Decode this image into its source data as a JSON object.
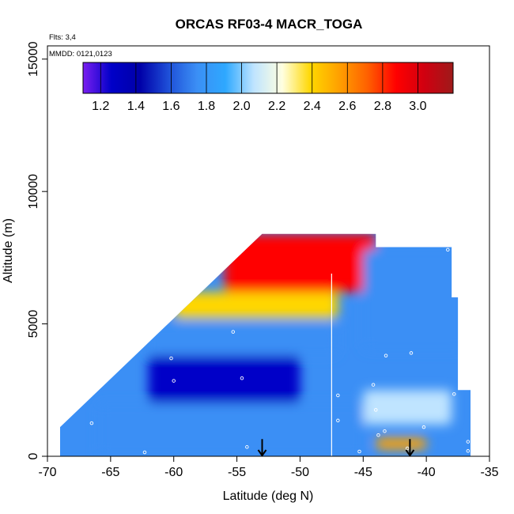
{
  "chart_data": {
    "type": "heatmap",
    "title": "ORCAS RF03-4 MACR_TOGA",
    "subtitle_flights": "Flts: 3,4",
    "subtitle_dates": "MMDD: 0121,0123",
    "xlabel": "Latitude (deg N)",
    "ylabel": "Altitude (m)",
    "xlim": [
      -70,
      -35
    ],
    "ylim": [
      0,
      15500
    ],
    "x_ticks": [
      -70,
      -65,
      -60,
      -55,
      -50,
      -45,
      -40,
      -35
    ],
    "x_tick_labels": [
      "-70",
      "-65",
      "-60",
      "-55",
      "-50",
      "-45",
      "-40",
      "-35"
    ],
    "y_ticks": [
      0,
      5000,
      10000,
      15000
    ],
    "y_tick_labels": [
      "0",
      "5000",
      "10000",
      "15000"
    ],
    "grid": false,
    "colorbar": {
      "placement": "top-left inside plot",
      "range": [
        1.1,
        3.2
      ],
      "ticks": [
        1.2,
        1.4,
        1.6,
        1.8,
        2.0,
        2.2,
        2.4,
        2.6,
        2.8,
        3.0
      ],
      "tick_labels": [
        "1.2",
        "1.4",
        "1.6",
        "1.8",
        "2.0",
        "2.2",
        "2.4",
        "2.6",
        "2.8",
        "3.0"
      ],
      "colors": [
        "#7a1ff0",
        "#0000c8",
        "#0000a8",
        "#1e4fd8",
        "#3b8ff5",
        "#2ea8ff",
        "#bfe4ff",
        "#ffffe0",
        "#ffd700",
        "#ffa000",
        "#ff6000",
        "#ff0000",
        "#d00010",
        "#9e1a1a"
      ]
    },
    "envelope": {
      "lat_min_at_surface": -69,
      "lat_max": -36.5,
      "max_altitude": 8400,
      "left_edge_lat_at_max_alt": -53,
      "flight_turn_lat": -47.5
    },
    "regions": [
      {
        "lat_range": [
          -56,
          -44
        ],
        "alt_range": [
          6200,
          8400
        ],
        "value": 2.9
      },
      {
        "lat_range": [
          -60,
          -47
        ],
        "alt_range": [
          5200,
          6200
        ],
        "value": 2.4
      },
      {
        "lat_range": [
          -62,
          -47
        ],
        "alt_range": [
          3800,
          5000
        ],
        "value": 1.7
      },
      {
        "lat_range": [
          -62,
          -50
        ],
        "alt_range": [
          2000,
          3800
        ],
        "value": 1.2
      },
      {
        "lat_range": [
          -66,
          -45
        ],
        "alt_range": [
          0,
          2000
        ],
        "value": 1.8
      },
      {
        "lat_range": [
          -45,
          -37
        ],
        "alt_range": [
          4000,
          7800
        ],
        "value": 1.7
      },
      {
        "lat_range": [
          -45,
          -38
        ],
        "alt_range": [
          1200,
          2500
        ],
        "value": 2.1
      },
      {
        "lat_range": [
          -44,
          -40
        ],
        "alt_range": [
          250,
          700
        ],
        "value": 2.6
      }
    ],
    "samples": [
      {
        "lat": -38.3,
        "alt": 7800
      },
      {
        "lat": -55.3,
        "alt": 4700
      },
      {
        "lat": -60.2,
        "alt": 3700
      },
      {
        "lat": -43.2,
        "alt": 3800
      },
      {
        "lat": -41.2,
        "alt": 3900
      },
      {
        "lat": -54.6,
        "alt": 2950
      },
      {
        "lat": -60.0,
        "alt": 2850
      },
      {
        "lat": -44.2,
        "alt": 2700
      },
      {
        "lat": -47.0,
        "alt": 2300
      },
      {
        "lat": -37.8,
        "alt": 2350
      },
      {
        "lat": -44.0,
        "alt": 1750
      },
      {
        "lat": -47.0,
        "alt": 1350
      },
      {
        "lat": -40.2,
        "alt": 1100
      },
      {
        "lat": -43.3,
        "alt": 950
      },
      {
        "lat": -43.8,
        "alt": 800
      },
      {
        "lat": -66.5,
        "alt": 1250
      },
      {
        "lat": -54.2,
        "alt": 350
      },
      {
        "lat": -62.3,
        "alt": 150
      },
      {
        "lat": -45.3,
        "alt": 180
      },
      {
        "lat": -41.5,
        "alt": 300
      },
      {
        "lat": -36.7,
        "alt": 550
      },
      {
        "lat": -36.7,
        "alt": 200
      }
    ],
    "arrows": [
      {
        "lat": -53,
        "alt_from": 650,
        "alt_to": 0
      },
      {
        "lat": -41.3,
        "alt_from": 650,
        "alt_to": 0
      }
    ]
  }
}
